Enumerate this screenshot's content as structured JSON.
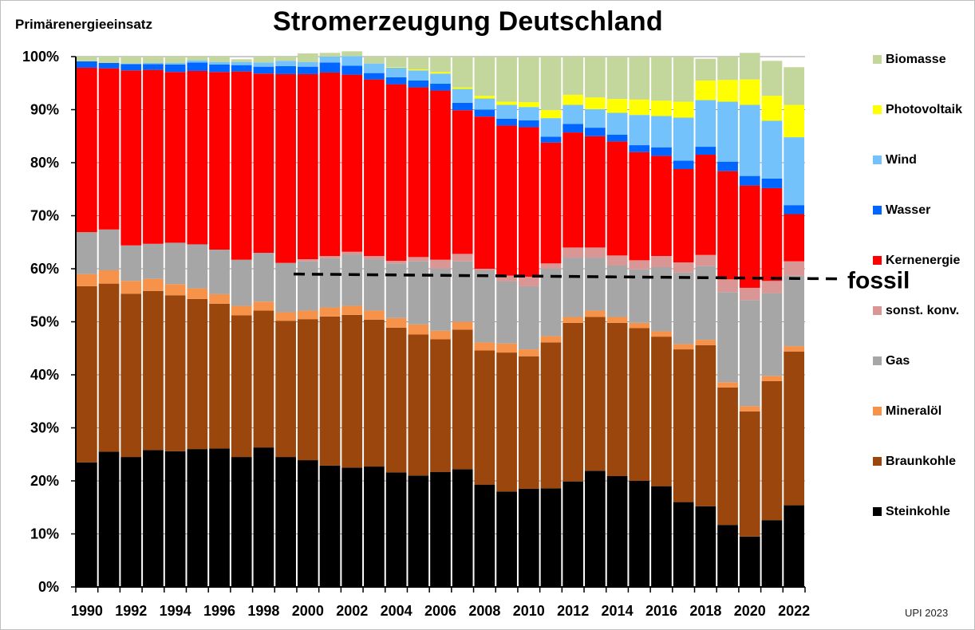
{
  "chart_data": {
    "type": "bar",
    "stacked": true,
    "title": "Stromerzeugung Deutschland",
    "ylabel": "Primärenergieeinsatz",
    "credit": "UPI  2023",
    "annotation": "fossil",
    "annotation_level": 59,
    "annotation_from": 2000,
    "ylim": [
      0,
      100
    ],
    "yticks": [
      "0%",
      "10%",
      "20%",
      "30%",
      "40%",
      "50%",
      "60%",
      "70%",
      "80%",
      "90%",
      "100%"
    ],
    "grid": true,
    "legend_position": "right",
    "categories": [
      "1990",
      "1991",
      "1992",
      "1993",
      "1994",
      "1995",
      "1996",
      "1997",
      "1998",
      "1999",
      "2000",
      "2001",
      "2002",
      "2003",
      "2004",
      "2005",
      "2006",
      "2007",
      "2008",
      "2009",
      "2010",
      "2011",
      "2012",
      "2013",
      "2014",
      "2015",
      "2016",
      "2017",
      "2018",
      "2019",
      "2020",
      "2021",
      "2022"
    ],
    "xtick_labels": [
      "1990",
      "1992",
      "1994",
      "1996",
      "1998",
      "2000",
      "2002",
      "2004",
      "2006",
      "2008",
      "2010",
      "2012",
      "2014",
      "2016",
      "2018",
      "2020",
      "2022"
    ],
    "series": [
      {
        "name": "Steinkohle",
        "color": "#000000",
        "values": [
          23.5,
          25.5,
          24.5,
          25.8,
          25.6,
          26,
          26.1,
          24.5,
          26.3,
          24.5,
          23.9,
          22.9,
          22.5,
          22.7,
          21.6,
          21,
          21.7,
          22.2,
          19.3,
          18,
          18.5,
          18.6,
          19.9,
          21.9,
          20.9,
          20,
          19,
          16,
          15.2,
          11.7,
          9.5,
          12.6,
          15.4
        ]
      },
      {
        "name": "Braunkohle",
        "color": "#9b460c",
        "values": [
          33.2,
          31.7,
          30.8,
          30,
          29.4,
          28.3,
          27.3,
          26.7,
          25.8,
          25.7,
          26.6,
          28.1,
          28.8,
          27.7,
          27.3,
          26.6,
          25,
          26.3,
          25.3,
          26.2,
          25,
          27.5,
          29.9,
          29,
          28.9,
          28.8,
          28.2,
          28.8,
          30.4,
          25.9,
          23.6,
          26.2,
          29
        ]
      },
      {
        "name": "Mineralöl",
        "color": "#f7924a",
        "values": [
          2.3,
          2.5,
          2.4,
          2.3,
          2.1,
          2,
          1.8,
          1.8,
          1.7,
          1.6,
          1.6,
          1.7,
          1.7,
          1.7,
          1.8,
          1.9,
          1.6,
          1.5,
          1.5,
          1.7,
          1.3,
          1.2,
          1.1,
          1.2,
          1.1,
          1,
          1,
          1,
          1,
          1,
          1,
          1,
          1
        ]
      },
      {
        "name": "Gas",
        "color": "#a6a6a6",
        "values": [
          7.9,
          7.7,
          6.7,
          6.6,
          7.8,
          8.3,
          8.4,
          8.7,
          9.2,
          9.3,
          9.3,
          9.3,
          9.7,
          9.7,
          10.3,
          11.9,
          11.7,
          11.4,
          13.6,
          11.7,
          11.9,
          12.7,
          11.2,
          10,
          9.7,
          10.1,
          12.1,
          13.5,
          13.9,
          17,
          20,
          15.6,
          13.3
        ]
      },
      {
        "name": "sonst. konv.",
        "color": "#da9694",
        "values": [
          0,
          0,
          0,
          0,
          0,
          0,
          0,
          0,
          0,
          0,
          0.4,
          0.4,
          0.5,
          0.6,
          0.5,
          0.8,
          1.7,
          1.4,
          0.3,
          1.1,
          1.8,
          1,
          1.9,
          1.9,
          1.9,
          1.7,
          2.1,
          1.9,
          2.1,
          2.4,
          2.3,
          2.3,
          2.7
        ]
      },
      {
        "name": "Kernenergie",
        "color": "#ff0000",
        "values": [
          31,
          30.4,
          33,
          32.8,
          32.2,
          32.7,
          33.5,
          35.5,
          33.8,
          35.6,
          34.9,
          34.6,
          33.4,
          33.3,
          33.3,
          32,
          31.9,
          27.1,
          28.7,
          28.3,
          28.2,
          22.8,
          21.7,
          21,
          21.5,
          20.4,
          18.9,
          17.6,
          18.9,
          20.4,
          19.3,
          17.5,
          8.9
        ]
      },
      {
        "name": "Wasser",
        "color": "#0066ff",
        "values": [
          1.2,
          1,
          1.2,
          1.1,
          1.4,
          1.6,
          1.4,
          1.2,
          1.3,
          1.5,
          1.4,
          1.9,
          1.7,
          1.2,
          1.3,
          1.3,
          1.3,
          1.4,
          1.3,
          1.3,
          1.3,
          1.1,
          1.6,
          1.6,
          1.3,
          1.3,
          1.6,
          1.6,
          1.5,
          1.8,
          1.8,
          1.8,
          1.7
        ]
      },
      {
        "name": "Wind",
        "color": "#73c2fb",
        "values": [
          0,
          0,
          0.1,
          0.2,
          0.3,
          0.4,
          0.5,
          0.6,
          0.8,
          1,
          0.9,
          1.1,
          1.8,
          1.8,
          1.8,
          1.9,
          1.9,
          2.6,
          2.1,
          2.6,
          2.5,
          3.5,
          3.6,
          3.5,
          4.1,
          5.7,
          5.9,
          8.1,
          8.8,
          11.3,
          13.4,
          10.9,
          12.8
        ]
      },
      {
        "name": "Photovoltaik",
        "color": "#ffff00",
        "values": [
          0,
          0,
          0,
          0,
          0,
          0,
          0,
          0,
          0,
          0,
          0,
          0,
          0,
          0,
          0.1,
          0.2,
          0.3,
          0.3,
          0.5,
          0.6,
          0.9,
          1.5,
          1.9,
          2.2,
          2.6,
          2.9,
          2.9,
          3,
          3.7,
          4.1,
          4.8,
          4.7,
          6.1
        ]
      },
      {
        "name": "Biomasse",
        "color": "#c3d69b",
        "values": [
          0.9,
          1.2,
          1.3,
          1.2,
          1.2,
          0.7,
          1,
          0.5,
          1.1,
          0.8,
          1.6,
          0.7,
          0.9,
          1.3,
          2,
          2.4,
          2.9,
          5.8,
          7.4,
          8.5,
          8.6,
          10.1,
          7.2,
          7.7,
          8,
          8.1,
          8.3,
          8.5,
          4.1,
          4.4,
          5,
          6.6,
          7.1
        ]
      }
    ]
  }
}
